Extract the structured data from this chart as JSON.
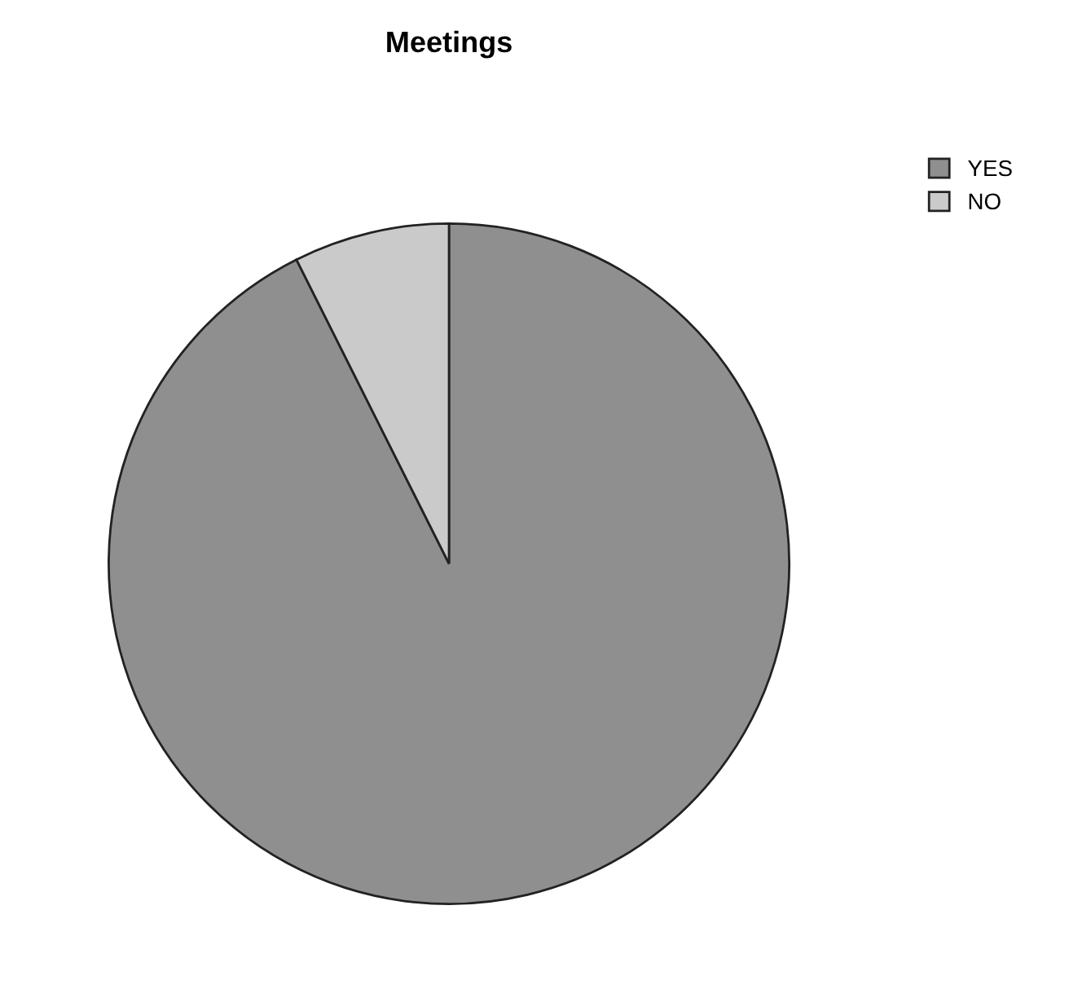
{
  "chart_data": {
    "type": "pie",
    "title": "Meetings",
    "categories": [
      "YES",
      "NO"
    ],
    "values": [
      92.6,
      7.4
    ],
    "colors": [
      "#8f8f8f",
      "#cacaca"
    ],
    "legend": "top right"
  }
}
